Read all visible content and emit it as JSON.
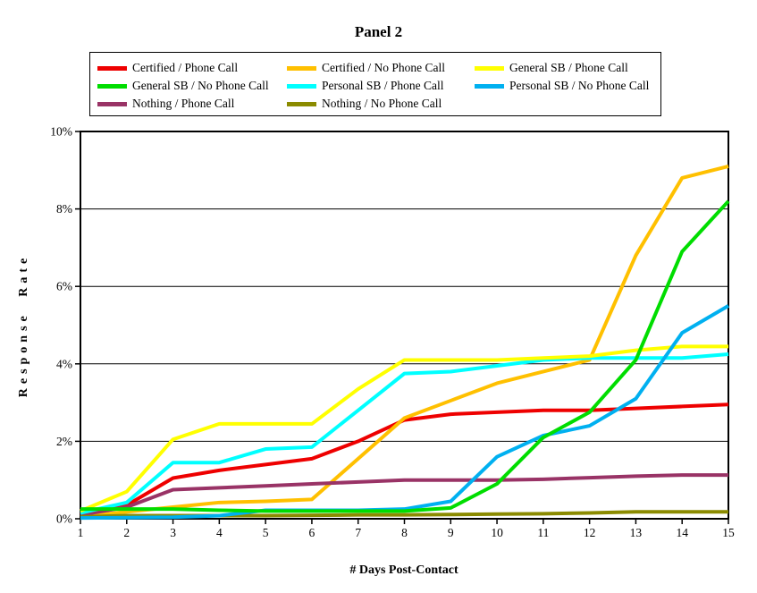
{
  "chart_data": {
    "type": "line",
    "title": "Panel 2",
    "xlabel": "# Days Post-Contact",
    "ylabel": "Response Rate",
    "x": [
      1,
      2,
      3,
      4,
      5,
      6,
      7,
      8,
      9,
      10,
      11,
      12,
      13,
      14,
      15
    ],
    "xlim": [
      1,
      15
    ],
    "ylim": [
      0,
      10
    ],
    "yticks": [
      0,
      2,
      4,
      6,
      8,
      10
    ],
    "ytick_labels": [
      "0%",
      "2%",
      "4%",
      "6%",
      "8%",
      "10%"
    ],
    "grid": "horizontal",
    "legend_position": "top",
    "unit": "percent",
    "draw_order": [
      0,
      1,
      6,
      7,
      4,
      2,
      5,
      3
    ],
    "series": [
      {
        "name": "Certified / Phone Call",
        "color": "#ee0000",
        "values": [
          0.1,
          0.35,
          1.05,
          1.25,
          1.4,
          1.55,
          2.0,
          2.55,
          2.7,
          2.75,
          2.8,
          2.8,
          2.85,
          2.9,
          2.95
        ]
      },
      {
        "name": "Certified / No Phone Call",
        "color": "#ffc000",
        "values": [
          0.05,
          0.18,
          0.3,
          0.42,
          0.45,
          0.5,
          1.55,
          2.6,
          3.05,
          3.5,
          3.8,
          4.1,
          6.8,
          8.8,
          9.1
        ]
      },
      {
        "name": "General SB / Phone Call",
        "color": "#ffff00",
        "values": [
          0.2,
          0.7,
          2.05,
          2.45,
          2.45,
          2.45,
          3.35,
          4.1,
          4.1,
          4.1,
          4.15,
          4.2,
          4.35,
          4.45,
          4.45
        ]
      },
      {
        "name": "General SB / No Phone Call",
        "color": "#00dd00",
        "values": [
          0.25,
          0.25,
          0.25,
          0.22,
          0.2,
          0.2,
          0.2,
          0.2,
          0.28,
          0.9,
          2.1,
          2.75,
          4.1,
          6.9,
          8.2
        ]
      },
      {
        "name": "Personal SB / Phone Call",
        "color": "#00ffff",
        "values": [
          0.15,
          0.42,
          1.45,
          1.45,
          1.8,
          1.85,
          2.8,
          3.75,
          3.8,
          3.95,
          4.1,
          4.15,
          4.15,
          4.15,
          4.25
        ]
      },
      {
        "name": "Personal SB / No Phone Call",
        "color": "#00b0f0",
        "values": [
          0.02,
          0.03,
          0.04,
          0.08,
          0.22,
          0.22,
          0.22,
          0.25,
          0.45,
          1.6,
          2.15,
          2.4,
          3.1,
          4.8,
          5.5
        ]
      },
      {
        "name": "Nothing / Phone Call",
        "color": "#993366",
        "values": [
          0.1,
          0.3,
          0.75,
          0.8,
          0.85,
          0.9,
          0.95,
          1.0,
          1.0,
          1.0,
          1.02,
          1.06,
          1.1,
          1.13,
          1.13
        ]
      },
      {
        "name": "Nothing / No Phone Call",
        "color": "#8b8b00",
        "values": [
          0.05,
          0.08,
          0.08,
          0.08,
          0.08,
          0.09,
          0.1,
          0.1,
          0.11,
          0.12,
          0.13,
          0.15,
          0.18,
          0.18,
          0.18
        ]
      }
    ]
  }
}
